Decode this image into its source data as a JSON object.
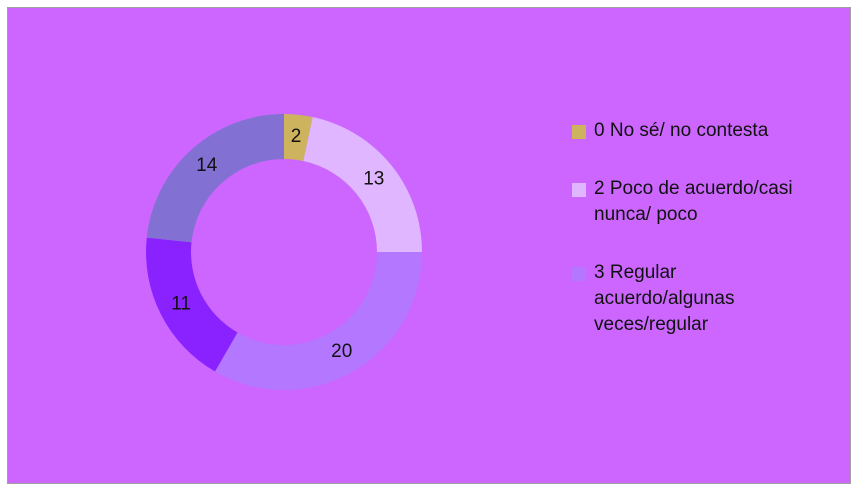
{
  "chart_data": {
    "type": "donut",
    "categories": [
      "0 No sé/ no contesta",
      "2 Poco de acuerdo/casi nunca/ poco",
      "3 Regular acuerdo/algunas veces/regular",
      null,
      null
    ],
    "values": [
      2,
      13,
      20,
      11,
      14
    ],
    "colors": [
      "#cdb35e",
      "#dfb6ff",
      "#b477ff",
      "#8a22ff",
      "#8270d2"
    ]
  }
}
